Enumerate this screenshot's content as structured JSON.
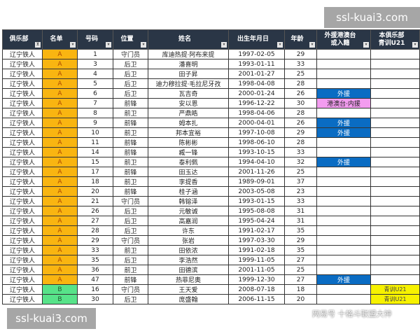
{
  "watermark": "ssl-kuai3.com",
  "overlay_text": "网易号 十格斗联盟大神",
  "columns": [
    "俱乐部",
    "名单",
    "号码",
    "位置",
    "姓名",
    "出生年月日",
    "年龄",
    "外援港澳台\n或入籍",
    "本俱乐部\n青训U21"
  ],
  "colors": {
    "header": "#2a3646",
    "list_a": "#f9b511",
    "list_b": "#57e389",
    "foreign": "#0a6cc3",
    "hkmt": "#f39cf0",
    "u21": "#f7f200"
  },
  "rows": [
    [
      "辽宁铁人",
      "A",
      "1",
      "守门员",
      "库迪热提·阿布来提",
      "1997-02-05",
      "29",
      "",
      ""
    ],
    [
      "辽宁铁人",
      "A",
      "3",
      "后卫",
      "潘喜明",
      "1993-01-11",
      "33",
      "",
      ""
    ],
    [
      "辽宁铁人",
      "A",
      "4",
      "后卫",
      "田子昇",
      "2001-01-27",
      "25",
      "",
      ""
    ],
    [
      "辽宁铁人",
      "A",
      "5",
      "后卫",
      "迪力穆拉提·毛拉尼牙孜",
      "1998-04-08",
      "28",
      "",
      ""
    ],
    [
      "辽宁铁人",
      "A",
      "6",
      "后卫",
      "瓦吉奇",
      "2000-01-24",
      "26",
      "外援",
      ""
    ],
    [
      "辽宁铁人",
      "A",
      "7",
      "前锋",
      "安以恩",
      "1996-12-22",
      "30",
      "港澳台·内援",
      ""
    ],
    [
      "辽宁铁人",
      "A",
      "8",
      "前卫",
      "严鼎皓",
      "1998-04-06",
      "28",
      "",
      ""
    ],
    [
      "辽宁铁人",
      "A",
      "9",
      "前锋",
      "姆本扎",
      "2000-04-01",
      "26",
      "外援",
      ""
    ],
    [
      "辽宁铁人",
      "A",
      "10",
      "前卫",
      "邦本宜裕",
      "1997-10-08",
      "29",
      "外援",
      ""
    ],
    [
      "辽宁铁人",
      "A",
      "11",
      "前锋",
      "陈彬彬",
      "1998-06-10",
      "28",
      "",
      ""
    ],
    [
      "辽宁铁人",
      "A",
      "14",
      "前锋",
      "臧一锋",
      "1993-10-15",
      "33",
      "",
      ""
    ],
    [
      "辽宁铁人",
      "A",
      "15",
      "前卫",
      "泰利佩",
      "1994-04-10",
      "32",
      "外援",
      ""
    ],
    [
      "辽宁铁人",
      "A",
      "17",
      "前锋",
      "田玉达",
      "2001-11-26",
      "25",
      "",
      ""
    ],
    [
      "辽宁铁人",
      "A",
      "18",
      "前卫",
      "李提香",
      "1989-09-01",
      "37",
      "",
      ""
    ],
    [
      "辽宁铁人",
      "A",
      "20",
      "前锋",
      "桂子涵",
      "2003-05-08",
      "23",
      "",
      ""
    ],
    [
      "辽宁铁人",
      "A",
      "21",
      "守门员",
      "韩镕泽",
      "1993-01-15",
      "33",
      "",
      ""
    ],
    [
      "辽宁铁人",
      "A",
      "26",
      "后卫",
      "元敏诚",
      "1995-08-08",
      "31",
      "",
      ""
    ],
    [
      "辽宁铁人",
      "A",
      "27",
      "后卫",
      "高嘉润",
      "1995-04-24",
      "31",
      "",
      ""
    ],
    [
      "辽宁铁人",
      "A",
      "28",
      "后卫",
      "许东",
      "1991-02-17",
      "35",
      "",
      ""
    ],
    [
      "辽宁铁人",
      "A",
      "29",
      "守门员",
      "张岩",
      "1997-03-30",
      "29",
      "",
      ""
    ],
    [
      "辽宁铁人",
      "A",
      "33",
      "前卫",
      "田依浓",
      "1991-02-18",
      "35",
      "",
      ""
    ],
    [
      "辽宁铁人",
      "A",
      "35",
      "后卫",
      "李浩然",
      "1999-11-05",
      "27",
      "",
      ""
    ],
    [
      "辽宁铁人",
      "A",
      "36",
      "前卫",
      "田德滨",
      "2001-11-05",
      "25",
      "",
      ""
    ],
    [
      "辽宁铁人",
      "A",
      "47",
      "前锋",
      "热菲尼奥",
      "1999-12-30",
      "27",
      "外援",
      ""
    ],
    [
      "辽宁铁人",
      "B",
      "16",
      "守门员",
      "王天爱",
      "2008-07-18",
      "18",
      "",
      "青训U21"
    ],
    [
      "辽宁铁人",
      "B",
      "30",
      "后卫",
      "庞盛翰",
      "2006-11-15",
      "20",
      "",
      "青训U21"
    ]
  ]
}
